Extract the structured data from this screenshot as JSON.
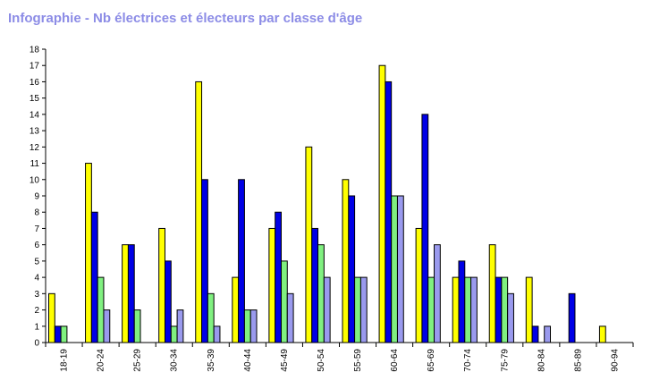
{
  "chart_data": {
    "type": "bar",
    "title": "Infographie - Nb électrices et électeurs par classe d'âge",
    "xlabel": "",
    "ylabel": "",
    "ylim": [
      0,
      18
    ],
    "y_ticks": [
      0,
      1,
      2,
      3,
      4,
      5,
      6,
      7,
      8,
      9,
      10,
      11,
      12,
      13,
      14,
      15,
      16,
      17,
      18
    ],
    "grid": false,
    "legend": "none",
    "categories": [
      "18-19",
      "20-24",
      "25-29",
      "30-34",
      "35-39",
      "40-44",
      "45-49",
      "50-54",
      "55-59",
      "60-64",
      "65-69",
      "70-74",
      "75-79",
      "80-84",
      "85-89",
      "90-94"
    ],
    "series": [
      {
        "color": "#ffff00",
        "values": [
          3,
          11,
          6,
          7,
          16,
          4,
          7,
          12,
          10,
          17,
          7,
          4,
          6,
          4,
          0,
          1
        ]
      },
      {
        "color": "#0000e6",
        "values": [
          1,
          8,
          6,
          5,
          10,
          10,
          8,
          7,
          9,
          16,
          14,
          5,
          4,
          1,
          3,
          0
        ]
      },
      {
        "color": "#80f080",
        "values": [
          1,
          4,
          2,
          1,
          3,
          2,
          5,
          6,
          4,
          9,
          4,
          4,
          4,
          0,
          0,
          0
        ]
      },
      {
        "color": "#9a9aee",
        "values": [
          0,
          2,
          0,
          2,
          1,
          2,
          3,
          4,
          4,
          9,
          6,
          4,
          3,
          1,
          0,
          0
        ]
      }
    ]
  }
}
